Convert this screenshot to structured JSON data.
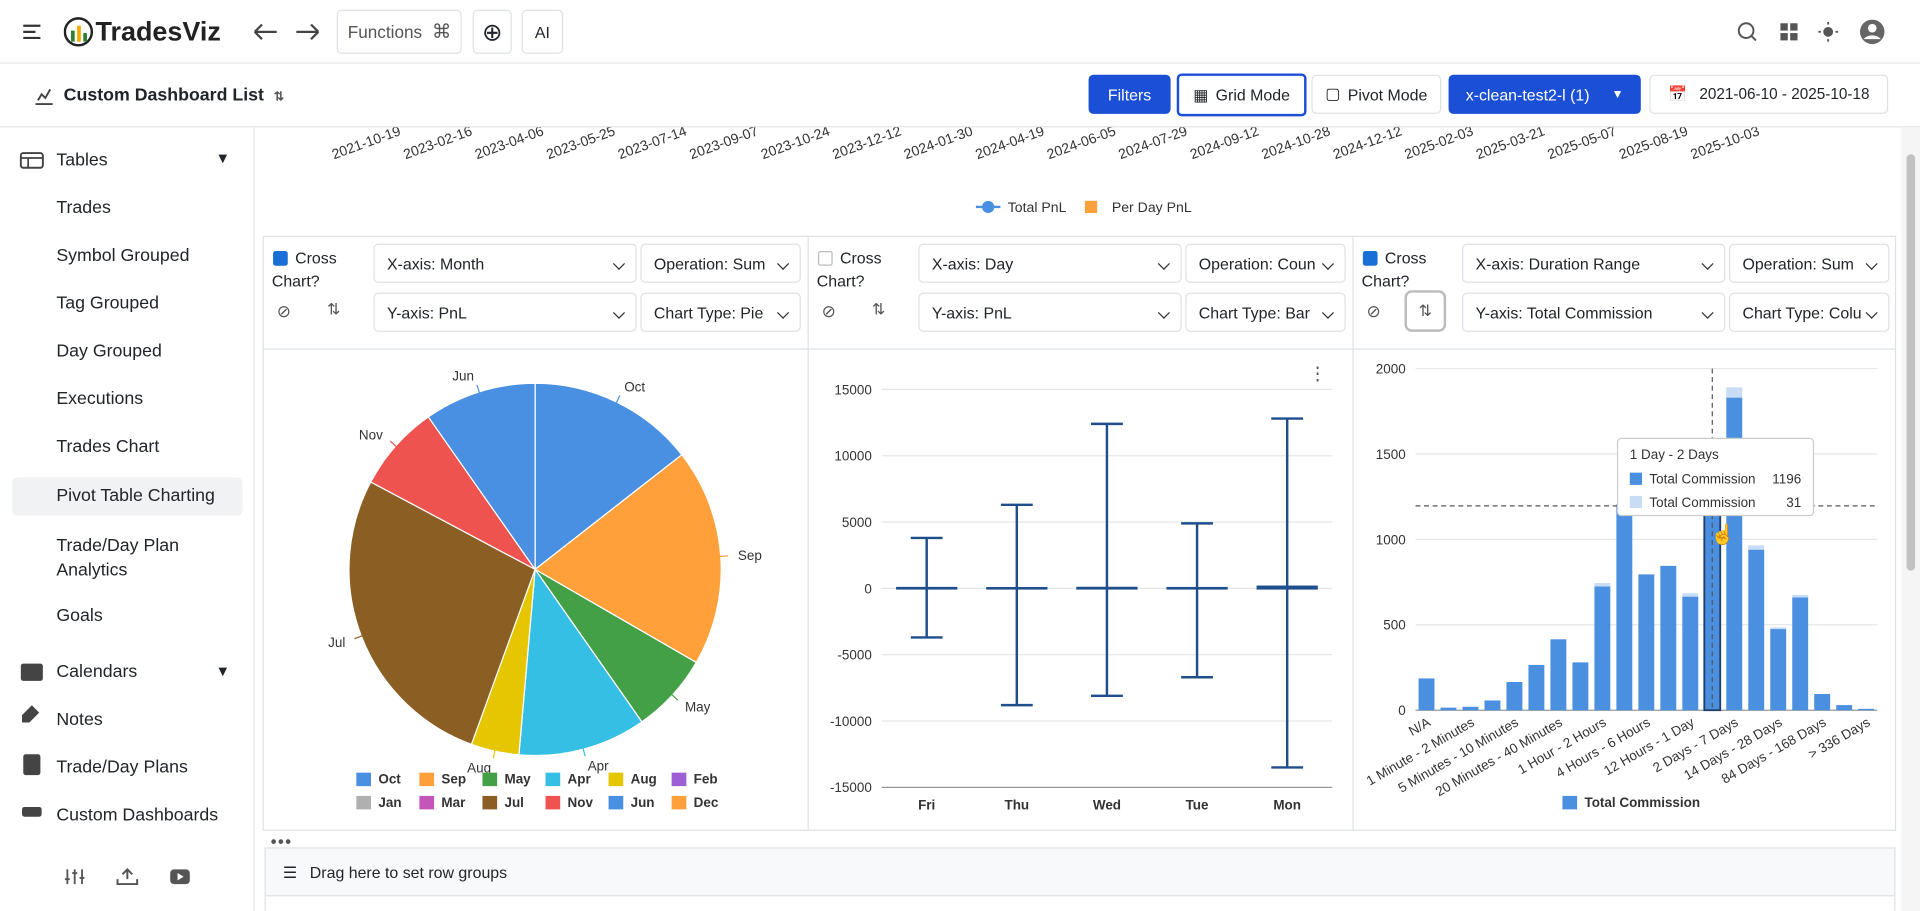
{
  "header": {
    "brand": "TradesViz",
    "functions": "Functions"
  },
  "toolbar": {
    "dashboard": "Custom Dashboard List",
    "filters": "Filters",
    "grid_mode": "Grid Mode",
    "pivot_mode": "Pivot Mode",
    "account": "x-clean-test2-l (1)",
    "date_range": "2021-06-10 - 2025-10-18"
  },
  "sidebar": {
    "tables": "Tables",
    "table_items": [
      "Trades",
      "Symbol Grouped",
      "Tag Grouped",
      "Day Grouped",
      "Executions",
      "Trades Chart",
      "Pivot Table Charting",
      "Trade/Day Plan Analytics",
      "Goals"
    ],
    "calendars": "Calendars",
    "notes": "Notes",
    "plans": "Trade/Day Plans",
    "dashboards": "Custom Dashboards"
  },
  "top_chart": {
    "x_labels": [
      "2021-10-19",
      "2023-02-16",
      "2023-04-06",
      "2023-05-25",
      "2023-07-14",
      "2023-09-07",
      "2023-10-24",
      "2023-12-12",
      "2024-01-30",
      "2024-04-19",
      "2024-06-05",
      "2024-07-29",
      "2024-09-12",
      "2024-10-28",
      "2024-12-12",
      "2025-02-03",
      "2025-03-21",
      "2025-05-07",
      "2025-08-19",
      "2025-10-03"
    ],
    "legend": [
      "Total PnL",
      "Per Day PnL"
    ]
  },
  "panels": [
    {
      "cross": "Cross Chart?",
      "checked": true,
      "x_axis": "X-axis: Month",
      "operation": "Operation: Sum",
      "y_axis": "Y-axis: PnL",
      "chart_type": "Chart Type: Pie"
    },
    {
      "cross": "Cross Chart?",
      "checked": false,
      "x_axis": "X-axis: Day",
      "operation": "Operation: Coun",
      "y_axis": "Y-axis: PnL",
      "chart_type": "Chart Type: Bar"
    },
    {
      "cross": "Cross Chart?",
      "checked": true,
      "x_axis": "X-axis: Duration Range",
      "operation": "Operation: Sum",
      "y_axis": "Y-axis: Total Commission",
      "chart_type": "Chart Type: Colu"
    }
  ],
  "chart_data": [
    {
      "type": "pie",
      "categories": [
        "Oct",
        "Sep",
        "May",
        "Apr",
        "Aug",
        "Feb",
        "Jan",
        "Mar",
        "Jul",
        "Nov",
        "Jun",
        "Dec"
      ],
      "values": [
        52,
        68,
        25,
        40,
        15,
        0,
        0,
        0,
        98,
        27,
        35,
        0
      ],
      "colors": [
        "#4a90e2",
        "#ffa03a",
        "#43a047",
        "#35bfe4",
        "#e5c600",
        "#9c5fd6",
        "#b0b0b0",
        "#c455b9",
        "#8b5e24",
        "#ef5350",
        "#4a90e2",
        "#ffa03a"
      ]
    },
    {
      "type": "bar",
      "categories": [
        "Fri",
        "Thu",
        "Wed",
        "Tue",
        "Mon"
      ],
      "series": [
        {
          "color": "#1f4e8c",
          "values": [
            20,
            10,
            30,
            15,
            120
          ],
          "high": [
            3800,
            6300,
            12400,
            4900,
            12800
          ],
          "low": [
            -3700,
            -8800,
            -8100,
            -6700,
            -13500
          ]
        }
      ],
      "ylim": [
        -15000,
        15000
      ],
      "yticks": [
        -15000,
        -10000,
        -5000,
        0,
        5000,
        10000,
        15000
      ],
      "grid": true
    },
    {
      "type": "column",
      "categories": [
        "N/A",
        null,
        "1 Minute - 2 Minutes",
        null,
        "5 Minutes - 10 Minutes",
        null,
        "20 Minutes - 40 Minutes",
        null,
        "1 Hour - 2 Hours",
        null,
        "4 Hours - 6 Hours",
        null,
        "12 Hours - 1 Day",
        null,
        "2 Days - 7 Days",
        null,
        "14 Days - 28 Days",
        null,
        "84 Days - 168 Days",
        null,
        "> 336 Days"
      ],
      "series": [
        {
          "name": "Total Commission",
          "color": "#4a8fe0",
          "values": [
            186,
            15,
            20,
            57,
            165,
            265,
            415,
            280,
            725,
            1205,
            795,
            845,
            665,
            1196,
            1830,
            940,
            475,
            660,
            95,
            30,
            8
          ]
        },
        {
          "name": "Total Commission",
          "color": "#c8dcf5",
          "values": [
            0,
            0,
            0,
            0,
            0,
            0,
            0,
            0,
            20,
            0,
            0,
            0,
            20,
            31,
            60,
            25,
            10,
            15,
            0,
            0,
            0
          ]
        }
      ],
      "ylim": [
        0,
        2000
      ],
      "yticks": [
        0,
        500,
        1000,
        1500,
        2000
      ],
      "stacked": true,
      "grid": true,
      "legend": "bottom",
      "tooltip_title": "1 Day - 2 Days"
    }
  ],
  "row_groups": "Drag here to set row groups"
}
